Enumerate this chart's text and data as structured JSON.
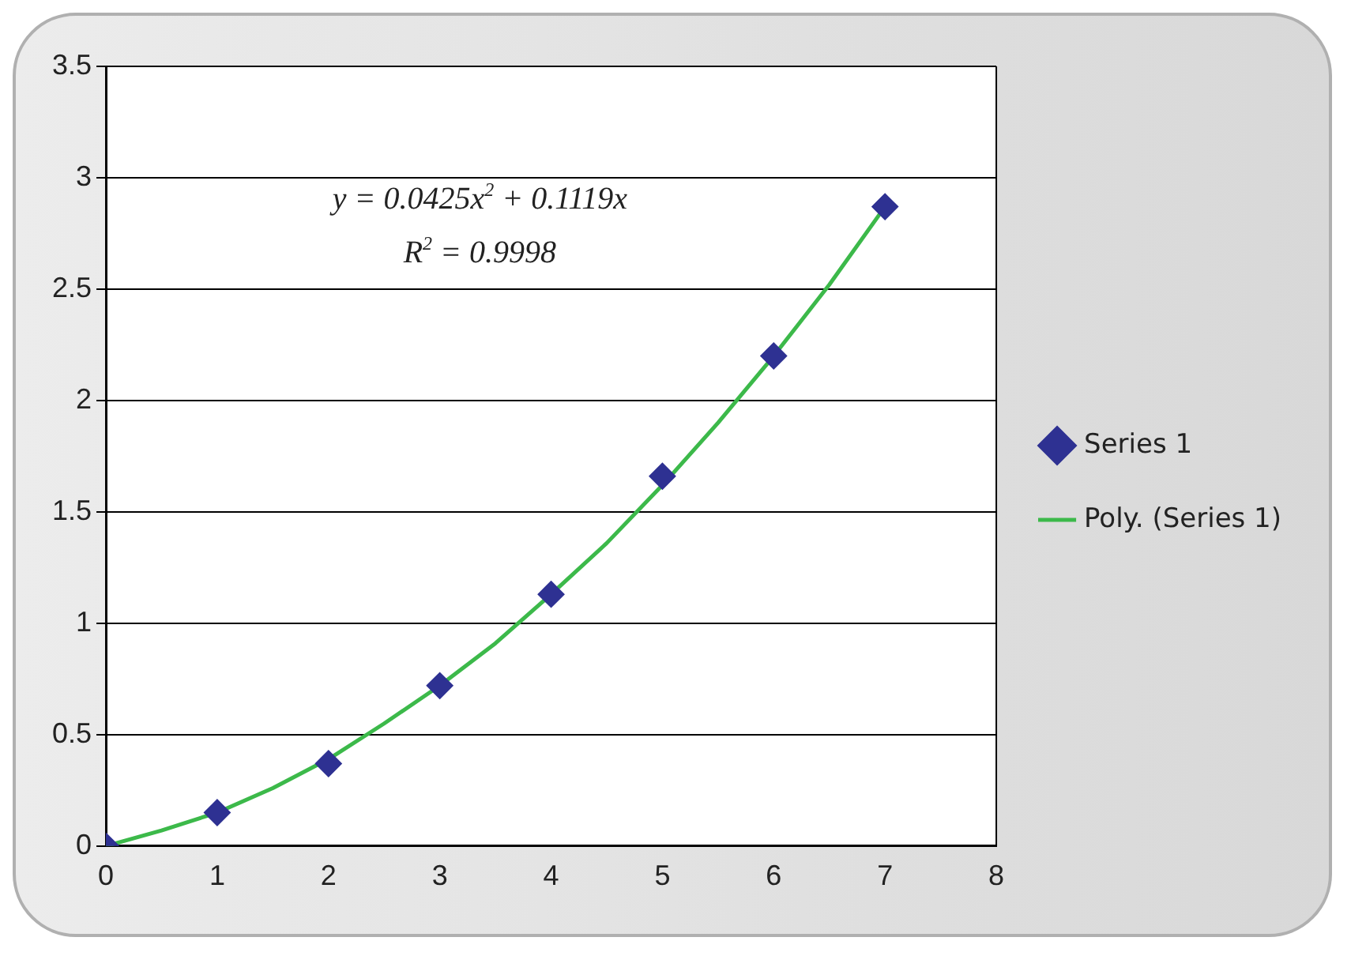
{
  "chart_data": {
    "type": "scatter",
    "x": [
      0,
      1,
      2,
      3,
      4,
      5,
      6,
      7
    ],
    "series": [
      {
        "name": "Series 1",
        "color": "#2e3192",
        "marker": "diamond",
        "values": [
          0,
          0.15,
          0.37,
          0.72,
          1.13,
          1.66,
          2.2,
          2.87
        ]
      },
      {
        "name": "Poly. (Series 1)",
        "type": "line",
        "color": "#3cb94a",
        "marker": "none",
        "x": [
          0,
          0.5,
          1,
          1.5,
          2,
          2.5,
          3,
          3.5,
          4,
          4.5,
          5,
          5.5,
          6,
          6.5,
          7
        ],
        "values": [
          0,
          0.07,
          0.15,
          0.26,
          0.39,
          0.55,
          0.72,
          0.91,
          1.13,
          1.36,
          1.62,
          1.9,
          2.2,
          2.52,
          2.87
        ]
      }
    ],
    "annotations": [
      "y = 0.0425x$^{2}$ + 0.1119x",
      "R$^{2}$ = 0.9998"
    ],
    "xlim": [
      0,
      8
    ],
    "xticks": [
      0,
      1,
      2,
      3,
      4,
      5,
      6,
      7,
      8
    ],
    "ylim": [
      0,
      3.5
    ],
    "yticks": [
      0,
      0.5,
      1,
      1.5,
      2,
      2.5,
      3,
      3.5
    ],
    "grid": "y",
    "legend": "right"
  }
}
